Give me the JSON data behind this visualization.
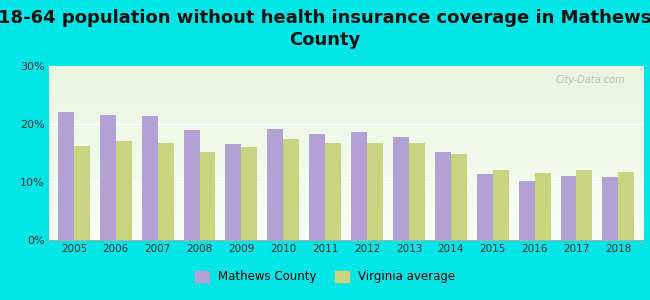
{
  "title": "18-64 population without health insurance coverage in Mathews\nCounty",
  "years": [
    2005,
    2006,
    2007,
    2008,
    2009,
    2010,
    2011,
    2012,
    2013,
    2014,
    2015,
    2016,
    2017,
    2018
  ],
  "mathews_values": [
    22.0,
    21.5,
    21.3,
    19.0,
    16.5,
    19.2,
    18.2,
    18.7,
    17.7,
    15.2,
    11.3,
    10.1,
    11.0,
    10.8
  ],
  "virginia_values": [
    16.2,
    17.0,
    16.8,
    15.2,
    16.0,
    17.5,
    16.8,
    16.8,
    16.7,
    14.8,
    12.1,
    11.6,
    12.0,
    11.8
  ],
  "mathews_color": "#b3a0d4",
  "virginia_color": "#c8d47e",
  "background_color": "#00e5e5",
  "ylim": [
    0,
    30
  ],
  "yticks": [
    0,
    10,
    20,
    30
  ],
  "ytick_labels": [
    "0%",
    "10%",
    "20%",
    "30%"
  ],
  "title_fontsize": 13,
  "bar_width": 0.38,
  "legend_mathews": "Mathews County",
  "legend_virginia": "Virginia average"
}
